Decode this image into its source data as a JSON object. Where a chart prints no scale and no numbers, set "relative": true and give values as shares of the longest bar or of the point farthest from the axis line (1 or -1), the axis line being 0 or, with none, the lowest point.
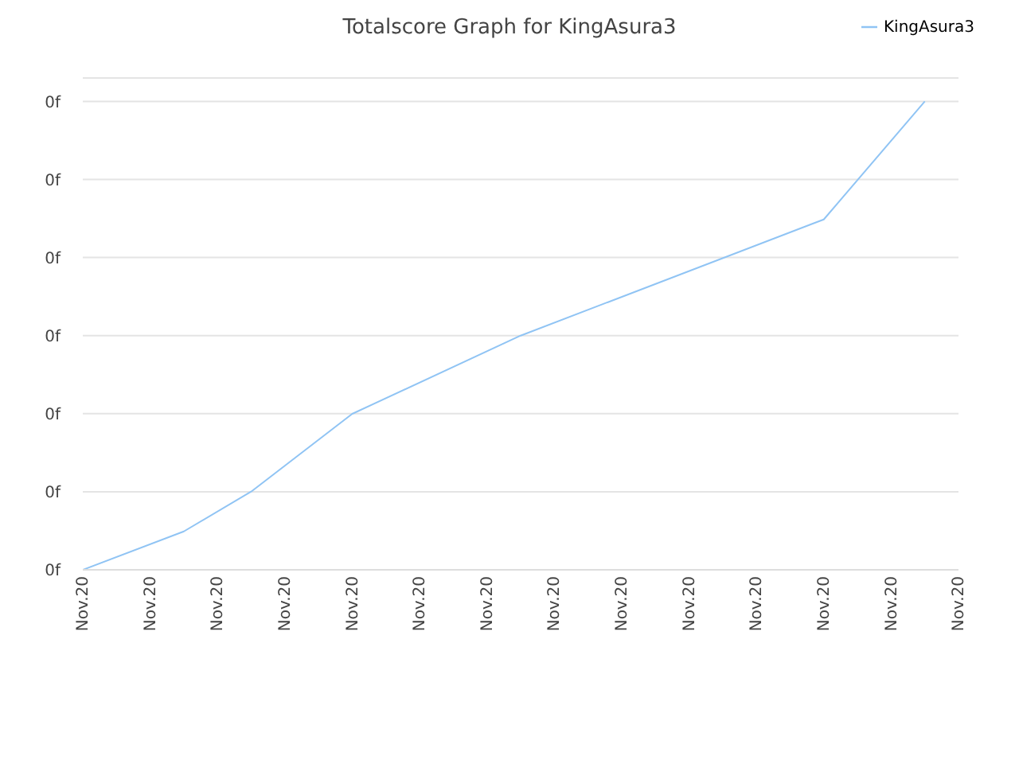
{
  "chart_data": {
    "type": "line",
    "title": "Totalscore Graph for KingAsura3",
    "relative": true,
    "categories": [
      "Nov.20",
      null,
      "Nov.20",
      null,
      "Nov.20",
      null,
      "Nov.20",
      null,
      "Nov.20",
      null,
      "Nov.20",
      null,
      "Nov.20",
      null,
      "Nov.20",
      null,
      "Nov.20",
      null,
      "Nov.20",
      null,
      "Nov.20",
      null,
      "Nov.20",
      null,
      "Nov.20",
      null,
      "Nov.20"
    ],
    "series": [
      {
        "name": "KingAsura3",
        "color": "#90c4f4",
        "values": [
          0,
          null,
          null,
          0.082,
          null,
          0.167,
          null,
          null,
          0.333,
          null,
          null,
          null,
          null,
          0.5,
          null,
          null,
          null,
          null,
          null,
          null,
          null,
          null,
          0.748,
          null,
          null,
          1,
          null
        ]
      }
    ],
    "annotations": [
      "0f",
      "0f",
      "0f",
      "0f",
      "0f",
      "0f",
      "0f"
    ],
    "grid": "y",
    "legend": "top right",
    "marker": "none",
    "line_style": "solid"
  }
}
